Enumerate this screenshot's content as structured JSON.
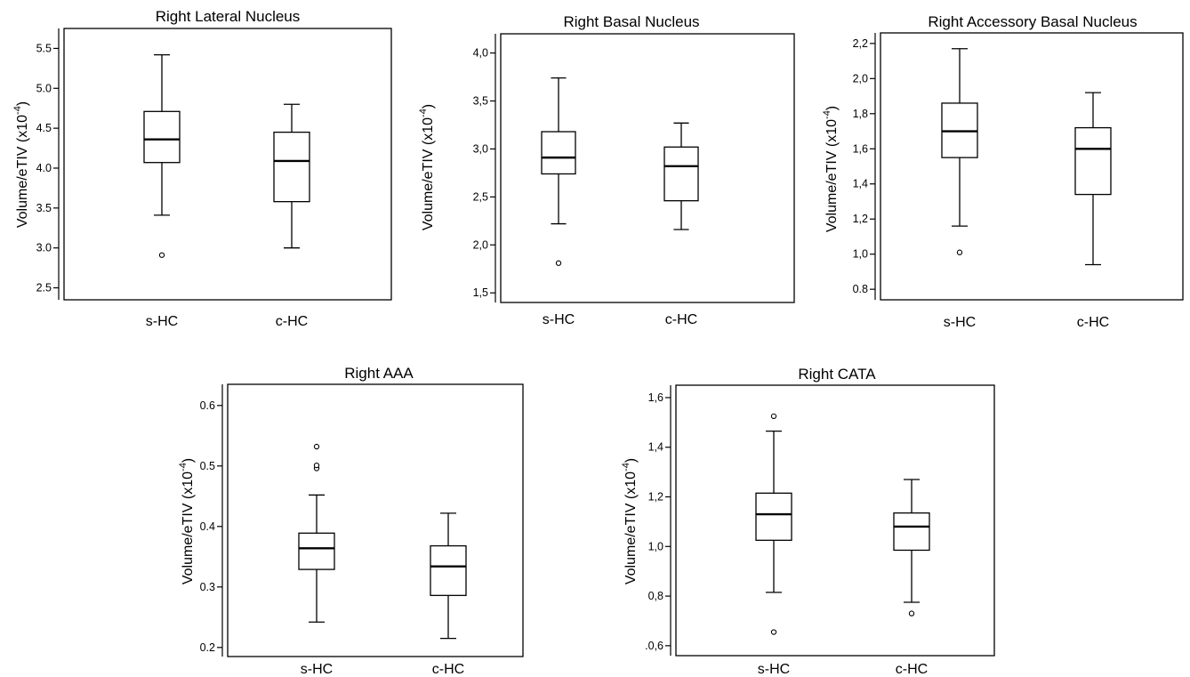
{
  "y_label": "Volume/eTIV",
  "y_unit_prefix": "(x10",
  "y_unit_exp": "-4",
  "y_unit_suffix": ")",
  "chart_data": [
    {
      "type": "box",
      "title": "Right Lateral Nucleus",
      "categories": [
        "s-HC",
        "c-HC"
      ],
      "ylim": [
        2.35,
        5.75
      ],
      "ticks": [
        2.5,
        3.0,
        3.5,
        4.0,
        4.5,
        5.0,
        5.5
      ],
      "tick_labels": [
        "2.5",
        "3.0",
        "3.5",
        "4.0",
        "4.5",
        "5.0",
        "5.5"
      ],
      "boxes": [
        {
          "category": "s-HC",
          "min": 3.41,
          "q1": 4.07,
          "median": 4.36,
          "q3": 4.71,
          "max": 5.42,
          "outliers": [
            2.91
          ]
        },
        {
          "category": "c-HC",
          "min": 3.0,
          "q1": 3.58,
          "median": 4.09,
          "q3": 4.45,
          "max": 4.8,
          "outliers": []
        }
      ]
    },
    {
      "type": "box",
      "title": "Right Basal Nucleus",
      "categories": [
        "s-HC",
        "c-HC"
      ],
      "ylim": [
        1.4,
        4.2
      ],
      "ticks": [
        1.5,
        2.0,
        2.5,
        3.0,
        3.5,
        4.0
      ],
      "tick_labels": [
        "1,5",
        "2,0",
        "2,5",
        "3,0",
        "3,5",
        "4,0"
      ],
      "boxes": [
        {
          "category": "s-HC",
          "min": 2.22,
          "q1": 2.74,
          "median": 2.91,
          "q3": 3.18,
          "max": 3.74,
          "outliers": [
            1.81
          ]
        },
        {
          "category": "c-HC",
          "min": 2.16,
          "q1": 2.46,
          "median": 2.82,
          "q3": 3.02,
          "max": 3.27,
          "outliers": []
        }
      ]
    },
    {
      "type": "box",
      "title": "Right Accessory Basal Nucleus",
      "categories": [
        "s-HC",
        "c-HC"
      ],
      "ylim": [
        0.74,
        2.26
      ],
      "ticks": [
        0.8,
        1.0,
        1.2,
        1.4,
        1.6,
        1.8,
        2.0,
        2.2
      ],
      "tick_labels": [
        "0.8",
        "1,0",
        "1,2",
        "1,4",
        "1,6",
        "1,8",
        "2,0",
        "2,2"
      ],
      "boxes": [
        {
          "category": "s-HC",
          "min": 1.16,
          "q1": 1.55,
          "median": 1.7,
          "q3": 1.86,
          "max": 2.17,
          "outliers": [
            1.01
          ]
        },
        {
          "category": "c-HC",
          "min": 0.94,
          "q1": 1.34,
          "median": 1.6,
          "q3": 1.72,
          "max": 1.92,
          "outliers": []
        }
      ]
    },
    {
      "type": "box",
      "title": "Right AAA",
      "categories": [
        "s-HC",
        "c-HC"
      ],
      "ylim": [
        0.185,
        0.635
      ],
      "ticks": [
        0.2,
        0.3,
        0.4,
        0.5,
        0.6
      ],
      "tick_labels": [
        "0.2",
        "0.3",
        "0.4",
        "0.5",
        "0.6"
      ],
      "boxes": [
        {
          "category": "s-HC",
          "min": 0.242,
          "q1": 0.329,
          "median": 0.364,
          "q3": 0.389,
          "max": 0.452,
          "outliers": [
            0.496,
            0.501,
            0.532
          ]
        },
        {
          "category": "c-HC",
          "min": 0.215,
          "q1": 0.286,
          "median": 0.334,
          "q3": 0.368,
          "max": 0.422,
          "outliers": []
        }
      ]
    },
    {
      "type": "box",
      "title": "Right CATA",
      "categories": [
        "s-HC",
        "c-HC"
      ],
      "ylim": [
        0.56,
        1.65
      ],
      "ticks": [
        0.6,
        0.8,
        1.0,
        1.2,
        1.4,
        1.6
      ],
      "tick_labels": [
        ".0,6",
        "0,8",
        "1,0",
        "1,2",
        "1,4",
        "1,6"
      ],
      "boxes": [
        {
          "category": "s-HC",
          "min": 0.815,
          "q1": 1.025,
          "median": 1.13,
          "q3": 1.215,
          "max": 1.465,
          "outliers": [
            0.655,
            1.525
          ]
        },
        {
          "category": "c-HC",
          "min": 0.775,
          "q1": 0.985,
          "median": 1.08,
          "q3": 1.135,
          "max": 1.27,
          "outliers": [
            0.73
          ]
        }
      ]
    }
  ]
}
